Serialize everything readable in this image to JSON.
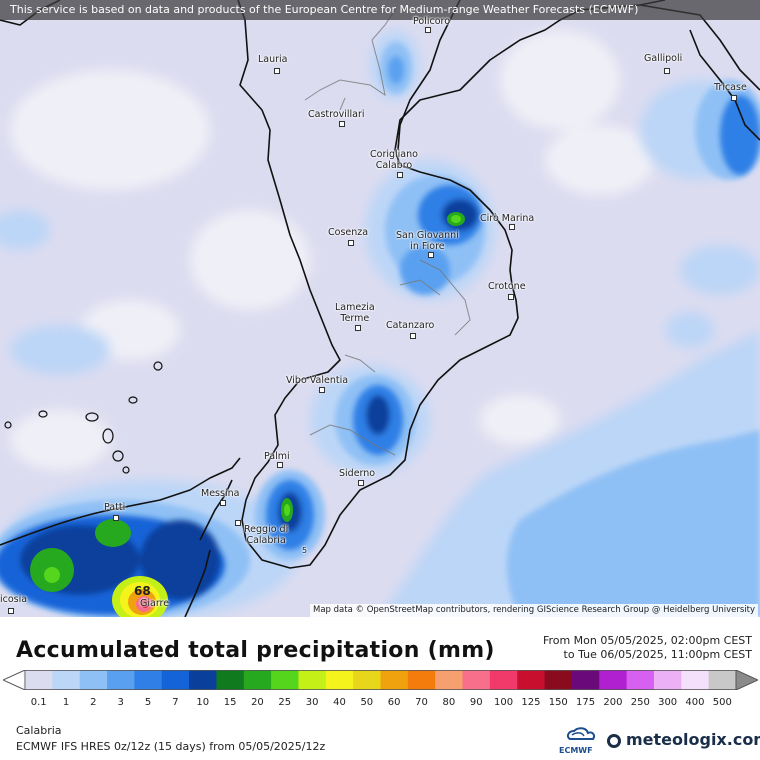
{
  "banner": "This service is based on data and products of the European Centre for Medium-range Weather Forecasts (ECMWF)",
  "attribution": "Map data © OpenStreetMap contributors, rendering GIScience Research Group @ Heidelberg University",
  "cities": [
    {
      "name": "Policoro"
    },
    {
      "name": "Lauria"
    },
    {
      "name": "Gallipoli"
    },
    {
      "name": "Tricase"
    },
    {
      "name": "Castrovillari"
    },
    {
      "name": "Corigliano",
      "name2": "Calabro"
    },
    {
      "name": "Cirò Marina"
    },
    {
      "name": "San Giovanni",
      "name2": "in Fiore"
    },
    {
      "name": "Cosenza"
    },
    {
      "name": "Crotone"
    },
    {
      "name": "Lamezia",
      "name2": "Terme"
    },
    {
      "name": "Catanzaro"
    },
    {
      "name": "Vibo Valentia"
    },
    {
      "name": "Palmi"
    },
    {
      "name": "Siderno"
    },
    {
      "name": "Messina"
    },
    {
      "name": "Patti"
    },
    {
      "name": "Reggio di",
      "name2": "Calabria"
    },
    {
      "name": "icosia"
    },
    {
      "name": "Giarre"
    }
  ],
  "max_label": "68",
  "small_label": "5",
  "title": "Accumulated total precipitation (mm)",
  "period": {
    "from": "From Mon 05/05/2025, 02:00pm CEST",
    "to": "to Tue 06/05/2025, 11:00pm CEST"
  },
  "colorbar": {
    "labels": [
      "0.1",
      "1",
      "2",
      "3",
      "5",
      "7",
      "10",
      "15",
      "20",
      "25",
      "30",
      "40",
      "50",
      "60",
      "70",
      "80",
      "90",
      "100",
      "125",
      "150",
      "175",
      "200",
      "250",
      "300",
      "400",
      "500"
    ],
    "colors": [
      "#dcdcf0",
      "#bcd6f7",
      "#8fc0f5",
      "#5aa0f0",
      "#2f7fe6",
      "#1563d8",
      "#0a3f9c",
      "#0f7a1e",
      "#26a91f",
      "#55d61c",
      "#c4f018",
      "#f4f41c",
      "#e8d61a",
      "#f0a10e",
      "#f47c0c",
      "#f6a070",
      "#f86f8c",
      "#f23a6a",
      "#c8102e",
      "#8a0a1e",
      "#6a0a7a",
      "#b020d0",
      "#d860f0",
      "#ecb0f6",
      "#f4e0fa",
      "#c8c8c8"
    ]
  },
  "footer": {
    "region": "Calabria",
    "model": "ECMWF IFS HRES 0z/12z (15 days) from  05/05/2025/12z",
    "ecmwf_label": "ECMWF",
    "brand": "meteologix.com"
  }
}
